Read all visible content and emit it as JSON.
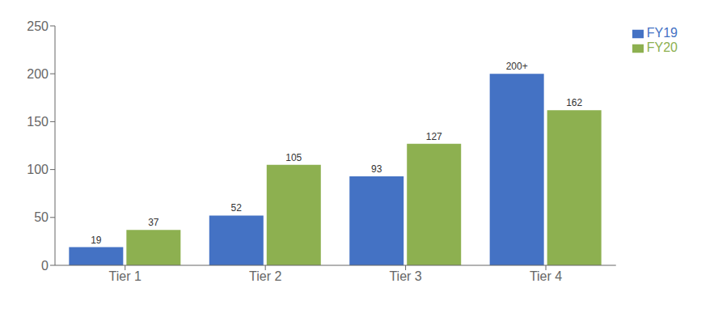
{
  "chart_data": {
    "type": "bar",
    "categories": [
      "Tier 1",
      "Tier 2",
      "Tier 3",
      "Tier 4"
    ],
    "series": [
      {
        "name": "FY19",
        "color": "#4472C4",
        "values": [
          19,
          52,
          93,
          200
        ],
        "value_labels": [
          "19",
          "52",
          "93",
          "200+"
        ]
      },
      {
        "name": "FY20",
        "color": "#8DB050",
        "values": [
          37,
          105,
          127,
          162
        ]
      }
    ],
    "ylim": [
      0,
      250
    ],
    "yticks": [
      0,
      50,
      100,
      150,
      200,
      250
    ],
    "grid": false,
    "legend": "upper right",
    "data_labels": true
  }
}
